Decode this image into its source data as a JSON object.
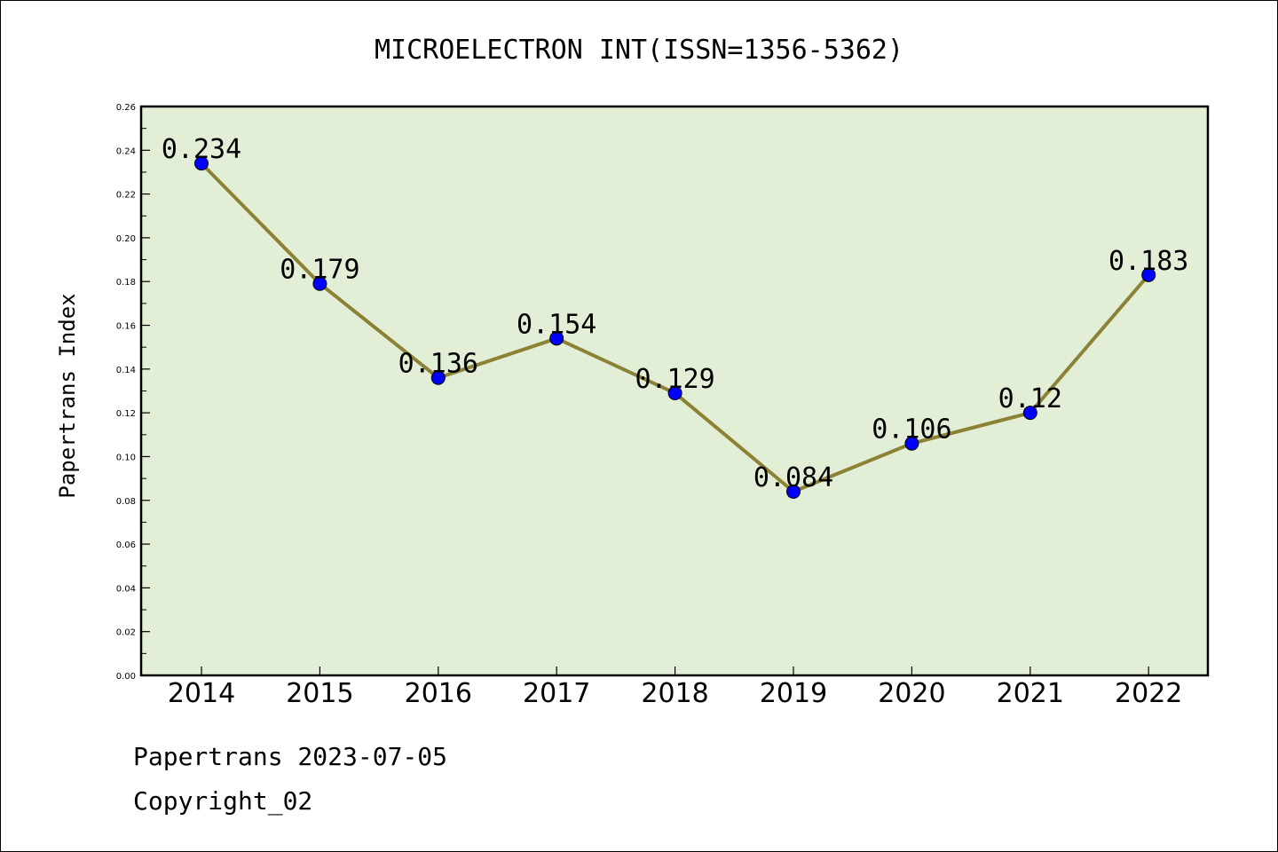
{
  "footer": {
    "line1": "Papertrans 2023-07-05",
    "line2": "Copyright_02"
  },
  "colors": {
    "plot_background": "#e2efd6",
    "line": "#8b8236",
    "marker": "#0000ff"
  },
  "chart_data": {
    "type": "line",
    "title": "MICROELECTRON INT(ISSN=1356-5362)",
    "xlabel": "",
    "ylabel": "Papertrans Index",
    "categories": [
      "2014",
      "2015",
      "2016",
      "2017",
      "2018",
      "2019",
      "2020",
      "2021",
      "2022"
    ],
    "series": [
      {
        "values": [
          0.234,
          0.179,
          0.136,
          0.154,
          0.129,
          0.084,
          0.106,
          0.12,
          0.183
        ],
        "labels": [
          "0.234",
          "0.179",
          "0.136",
          "0.154",
          "0.129",
          "0.084",
          "0.106",
          "0.12",
          "0.183"
        ]
      }
    ],
    "ylim": [
      0,
      0.26
    ],
    "yticks": [
      "0.00",
      "0.02",
      "0.04",
      "0.06",
      "0.08",
      "0.10",
      "0.12",
      "0.14",
      "0.16",
      "0.18",
      "0.20",
      "0.22",
      "0.24",
      "0.26"
    ],
    "grid": false,
    "legend": "none"
  }
}
